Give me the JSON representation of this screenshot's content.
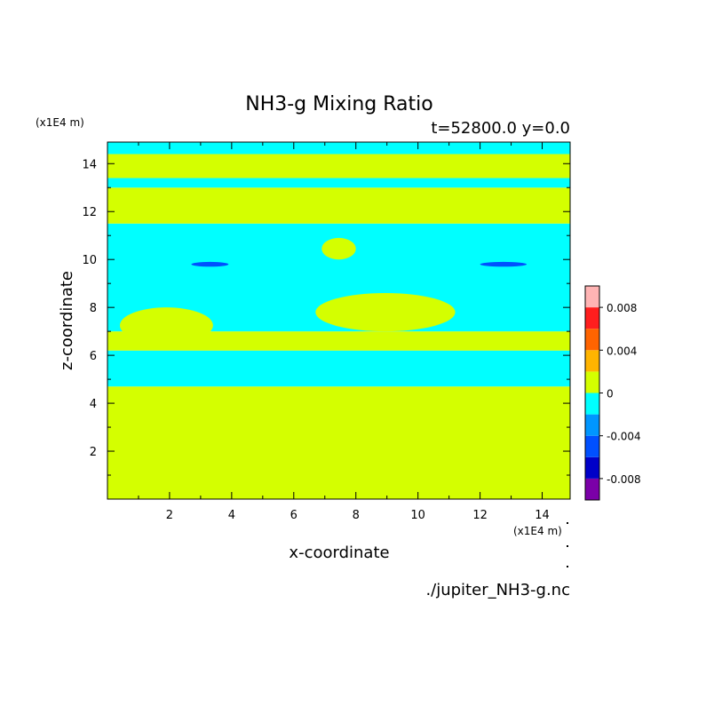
{
  "chart_data": {
    "type": "heatmap",
    "title": "NH3-g Mixing Ratio",
    "subtitle": "t=52800.0 y=0.0",
    "xlabel": "x-coordinate",
    "ylabel": "z-coordinate",
    "x_unit": "(x1E4 m)",
    "y_unit": "(x1E4 m)",
    "xlim": [
      0,
      14.9
    ],
    "ylim": [
      0,
      14.9
    ],
    "x_ticks": [
      "2",
      "4",
      "6",
      "8",
      "10",
      "12",
      "14"
    ],
    "y_ticks": [
      "2",
      "4",
      "6",
      "8",
      "10",
      "12",
      "14"
    ],
    "x_tick_values": [
      2,
      4,
      6,
      8,
      10,
      12,
      14
    ],
    "y_tick_values": [
      2,
      4,
      6,
      8,
      10,
      12,
      14
    ],
    "colorbar": {
      "tick_labels": [
        "0.008",
        "0.004",
        "0",
        "-0.004",
        "-0.008"
      ],
      "tick_values": [
        0.008,
        0.004,
        0,
        -0.004,
        -0.008
      ],
      "levels": [
        -0.01,
        -0.008,
        -0.006,
        -0.004,
        -0.002,
        0,
        0.002,
        0.004,
        0.006,
        0.008,
        0.01
      ],
      "colors": [
        "#7b00a8",
        "#0000c8",
        "#0050ff",
        "#0096ff",
        "#00ffff",
        "#d4ff00",
        "#ffb400",
        "#ff6400",
        "#ff1e1e",
        "#ffb4b4"
      ]
    },
    "bands": [
      {
        "level": 0,
        "z": [
          0,
          4.7
        ]
      },
      {
        "level": -0.002,
        "z": [
          4.7,
          6.2
        ]
      },
      {
        "level": 0,
        "z": [
          6.2,
          7.0
        ]
      },
      {
        "level": -0.002,
        "z": [
          7.0,
          11.5
        ]
      },
      {
        "level": 0,
        "z": [
          11.5,
          13.0
        ]
      },
      {
        "level": -0.002,
        "z": [
          13.0,
          13.4
        ]
      },
      {
        "level": 0,
        "z": [
          13.4,
          14.4
        ]
      },
      {
        "level": -0.002,
        "z": [
          14.4,
          14.9
        ]
      }
    ],
    "blobs": [
      {
        "level": 0,
        "x": [
          0.4,
          3.4
        ],
        "z": [
          6.5,
          8.0
        ]
      },
      {
        "level": 0,
        "x": [
          6.7,
          11.2
        ],
        "z": [
          7.0,
          8.6
        ]
      },
      {
        "level": 0,
        "x": [
          6.9,
          8.0
        ],
        "z": [
          10.0,
          10.9
        ]
      },
      {
        "level": -0.006,
        "x": [
          2.7,
          3.9
        ],
        "z": [
          9.7,
          9.9
        ]
      },
      {
        "level": -0.006,
        "x": [
          12.0,
          13.5
        ],
        "z": [
          9.7,
          9.9
        ]
      }
    ],
    "source": "./jupiter_NH3-g.nc"
  }
}
